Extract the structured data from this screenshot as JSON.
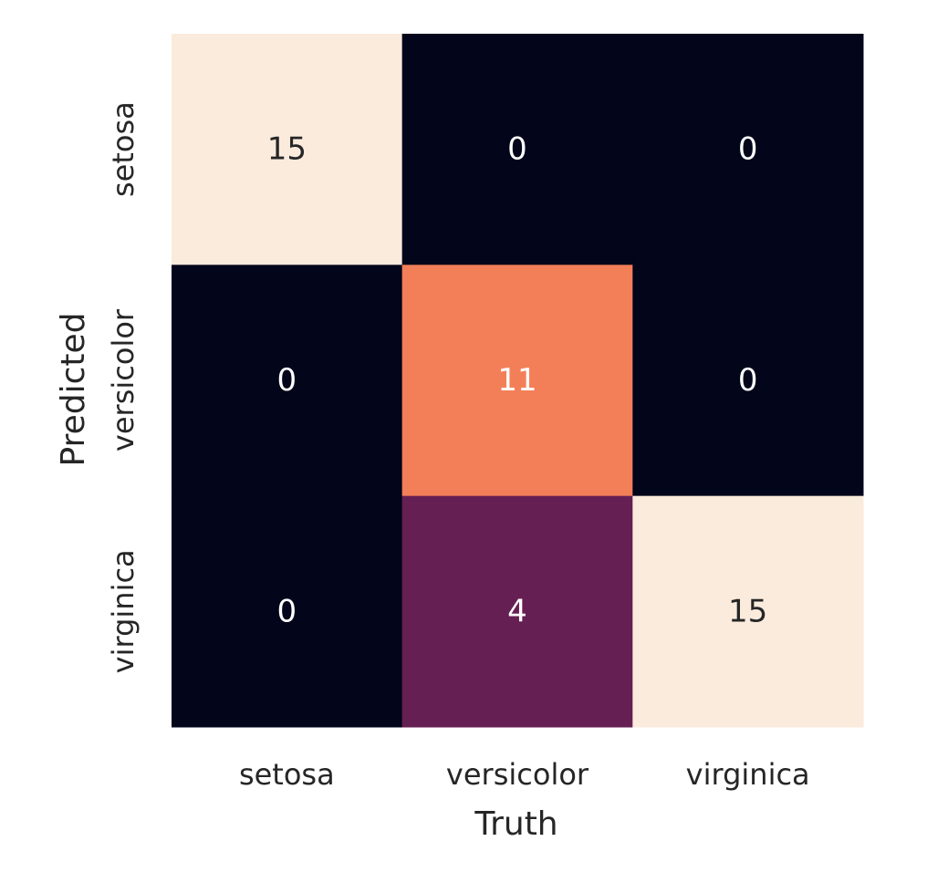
{
  "chart_data": {
    "type": "heatmap",
    "title": "",
    "xlabel": "Truth",
    "ylabel": "Predicted",
    "x_categories": [
      "setosa",
      "versicolor",
      "virginica"
    ],
    "y_categories": [
      "setosa",
      "versicolor",
      "virginica"
    ],
    "values": [
      [
        15,
        0,
        0
      ],
      [
        0,
        11,
        0
      ],
      [
        0,
        4,
        15
      ]
    ],
    "colorbar": false,
    "annotated": true,
    "colormap": "rocket",
    "cell_colors": [
      [
        "#faebdd",
        "#03051a",
        "#03051a"
      ],
      [
        "#03051a",
        "#f37f58",
        "#03051a"
      ],
      [
        "#03051a",
        "#661f53",
        "#faebdd"
      ]
    ],
    "label_colors": [
      [
        "#262626",
        "#ffffff",
        "#ffffff"
      ],
      [
        "#ffffff",
        "#ffffff",
        "#ffffff"
      ],
      [
        "#ffffff",
        "#ffffff",
        "#262626"
      ]
    ]
  }
}
